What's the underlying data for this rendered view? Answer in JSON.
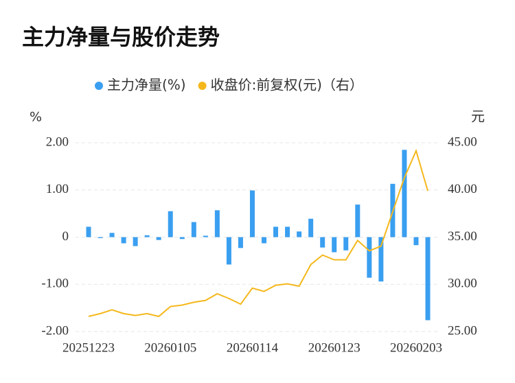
{
  "chart_data": {
    "type": "bar-line",
    "title": "主力净量与股价走势",
    "y_label": "%",
    "y2_label": "元",
    "categories": [
      "20251223",
      null,
      null,
      null,
      null,
      null,
      null,
      "20260105",
      null,
      null,
      null,
      null,
      null,
      null,
      "20260114",
      null,
      null,
      null,
      null,
      null,
      null,
      "20260123",
      null,
      null,
      null,
      null,
      null,
      null,
      "20260203",
      null
    ],
    "series": [
      {
        "name": "主力净量(%)",
        "color": "#3a9ff0",
        "kind": "bar",
        "axis": "y",
        "values": [
          0.22,
          -0.02,
          0.09,
          -0.13,
          -0.19,
          0.04,
          -0.06,
          0.55,
          -0.04,
          0.32,
          0.03,
          0.57,
          -0.58,
          -0.23,
          0.99,
          -0.13,
          0.22,
          0.22,
          0.12,
          0.39,
          -0.22,
          -0.32,
          -0.28,
          0.69,
          -0.86,
          -0.94,
          1.13,
          1.85,
          -0.17,
          -1.76
        ]
      },
      {
        "name": "收盘价:前复权(元)（右）",
        "color": "#f5b81c",
        "kind": "line",
        "axis": "y2",
        "values": [
          26.6,
          26.9,
          27.3,
          26.9,
          26.7,
          26.9,
          26.6,
          27.65,
          27.8,
          28.1,
          28.3,
          29.0,
          28.5,
          27.9,
          29.6,
          29.25,
          29.9,
          30.05,
          29.8,
          32.1,
          33.1,
          32.6,
          32.6,
          34.65,
          33.55,
          34.05,
          37.7,
          41.3,
          44.15,
          39.9
        ]
      }
    ],
    "ylim": [
      -2,
      2
    ],
    "yticks": [
      {
        "value": -2,
        "label": "-2.00"
      },
      {
        "value": -1,
        "label": "-1.00"
      },
      0,
      {
        "value": 1,
        "label": "1.00"
      },
      {
        "value": 2,
        "label": "2.00"
      }
    ],
    "y2lim": [
      25,
      45
    ],
    "y2ticks": [
      {
        "value": 25,
        "label": "25.00"
      },
      {
        "value": 30,
        "label": "30.00"
      },
      {
        "value": 35,
        "label": "35.00"
      },
      {
        "value": 40,
        "label": "40.00"
      },
      {
        "value": 45,
        "label": "45.00"
      }
    ],
    "grid": true
  }
}
